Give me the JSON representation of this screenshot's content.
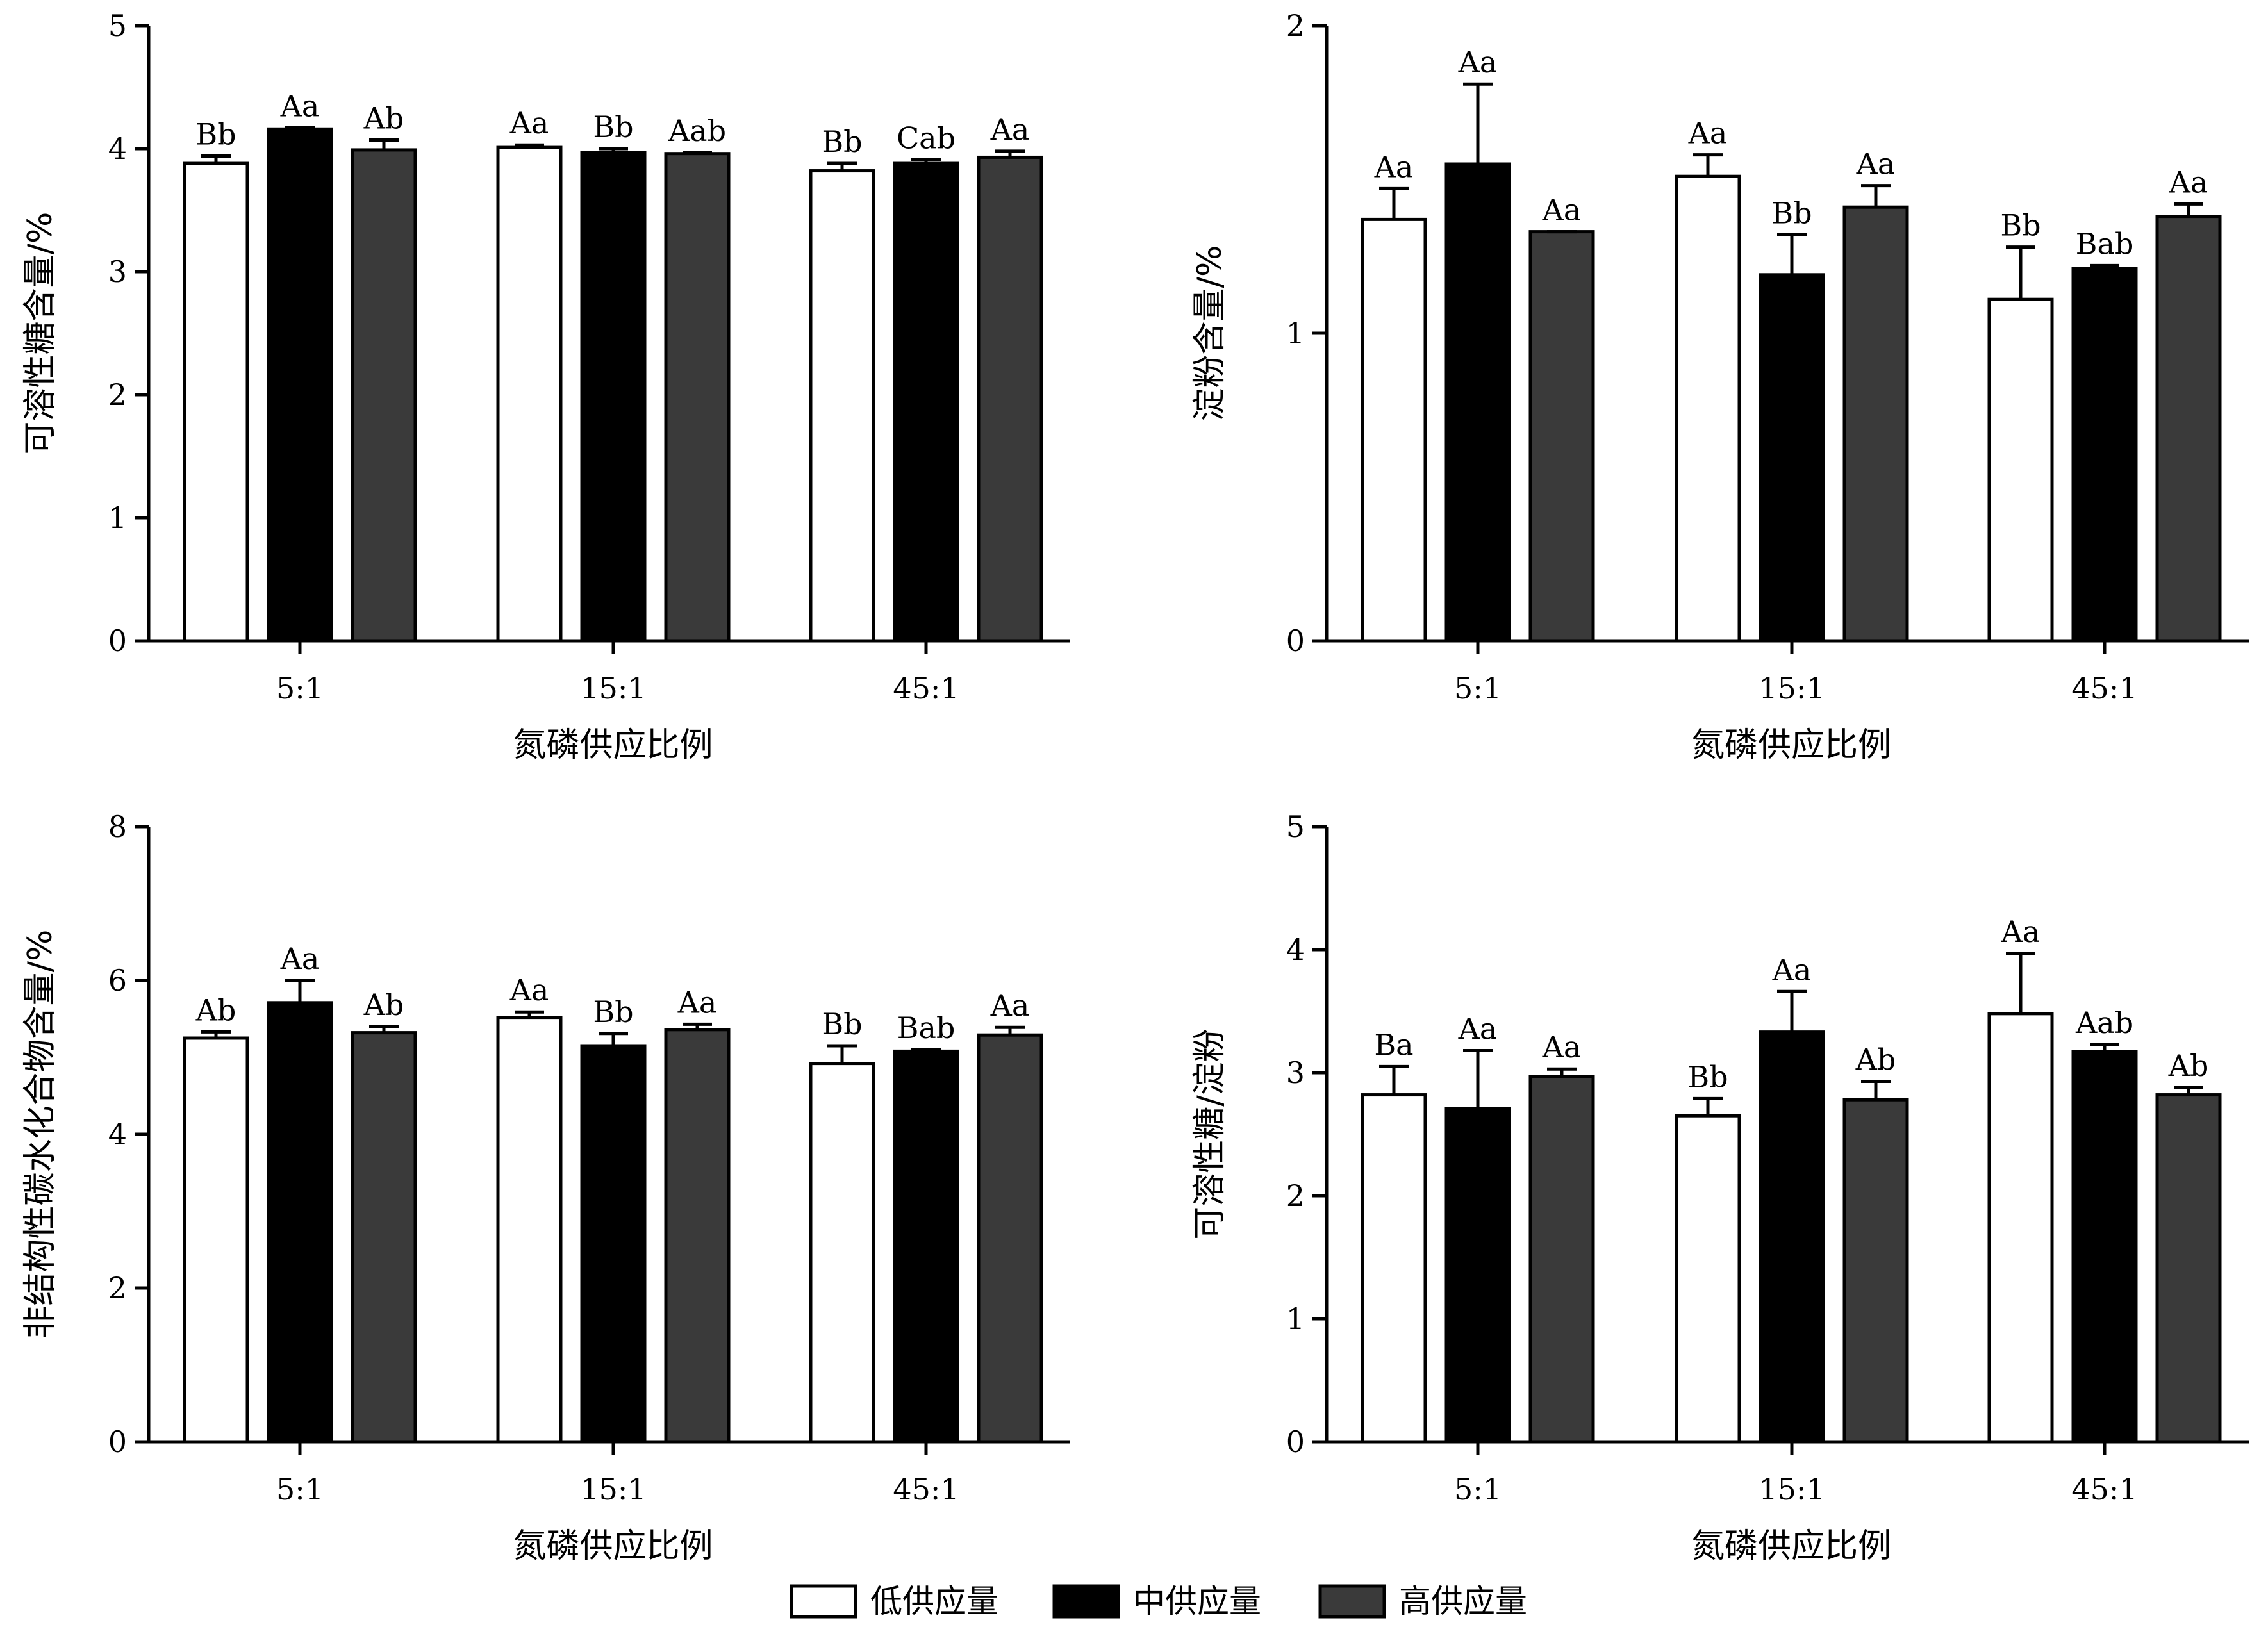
{
  "colors": {
    "low": "#ffffff",
    "mid": "#000000",
    "high": "#3a3a3a",
    "stroke": "#000000"
  },
  "legend": [
    {
      "label": "低供应量",
      "key": "low"
    },
    {
      "label": "中供应量",
      "key": "mid"
    },
    {
      "label": "高供应量",
      "key": "high"
    }
  ],
  "chart_data": [
    {
      "type": "bar",
      "panel": "top-left",
      "categories": [
        "5:1",
        "15:1",
        "45:1"
      ],
      "xlabel": "氮磷供应比例",
      "ylabel": "可溶性糖含量/%",
      "ylim": [
        0,
        5
      ],
      "yticks": [
        0,
        1,
        2,
        3,
        4,
        5
      ],
      "series": [
        {
          "key": "low",
          "values": [
            3.88,
            4.01,
            3.82
          ],
          "errors": [
            0.06,
            0.02,
            0.06
          ],
          "labels": [
            "Bb",
            "Aa",
            "Bb"
          ]
        },
        {
          "key": "mid",
          "values": [
            4.16,
            3.97,
            3.88
          ],
          "errors": [
            0.01,
            0.03,
            0.03
          ],
          "labels": [
            "Aa",
            "Bb",
            "Cab"
          ]
        },
        {
          "key": "high",
          "values": [
            3.99,
            3.96,
            3.93
          ],
          "errors": [
            0.08,
            0.01,
            0.05
          ],
          "labels": [
            "Ab",
            "Aab",
            "Aa"
          ]
        }
      ]
    },
    {
      "type": "bar",
      "panel": "top-right",
      "categories": [
        "5:1",
        "15:1",
        "45:1"
      ],
      "xlabel": "氮磷供应比例",
      "ylabel": "淀粉含量/%",
      "ylim": [
        0,
        2
      ],
      "yticks": [
        0,
        1,
        2
      ],
      "series": [
        {
          "key": "low",
          "values": [
            1.37,
            1.51,
            1.11
          ],
          "errors": [
            0.1,
            0.07,
            0.17
          ],
          "labels": [
            "Aa",
            "Aa",
            "Bb"
          ]
        },
        {
          "key": "mid",
          "values": [
            1.55,
            1.19,
            1.21
          ],
          "errors": [
            0.26,
            0.13,
            0.01
          ],
          "labels": [
            "Aa",
            "Bb",
            "Bab"
          ]
        },
        {
          "key": "high",
          "values": [
            1.33,
            1.41,
            1.38
          ],
          "errors": [
            0.0,
            0.07,
            0.04
          ],
          "labels": [
            "Aa",
            "Aa",
            "Aa"
          ]
        }
      ]
    },
    {
      "type": "bar",
      "panel": "bottom-left",
      "categories": [
        "5:1",
        "15:1",
        "45:1"
      ],
      "xlabel": "氮磷供应比例",
      "ylabel": "非结构性碳水化合物含量/%",
      "ylim": [
        0,
        8
      ],
      "yticks": [
        0,
        2,
        4,
        6,
        8
      ],
      "series": [
        {
          "key": "low",
          "values": [
            5.25,
            5.52,
            4.92
          ],
          "errors": [
            0.08,
            0.07,
            0.23
          ],
          "labels": [
            "Ab",
            "Aa",
            "Bb"
          ]
        },
        {
          "key": "mid",
          "values": [
            5.71,
            5.15,
            5.08
          ],
          "errors": [
            0.29,
            0.16,
            0.02
          ],
          "labels": [
            "Aa",
            "Bb",
            "Bab"
          ]
        },
        {
          "key": "high",
          "values": [
            5.32,
            5.36,
            5.29
          ],
          "errors": [
            0.08,
            0.07,
            0.1
          ],
          "labels": [
            "Ab",
            "Aa",
            "Aa"
          ]
        }
      ]
    },
    {
      "type": "bar",
      "panel": "bottom-right",
      "categories": [
        "5:1",
        "15:1",
        "45:1"
      ],
      "xlabel": "氮磷供应比例",
      "ylabel": "可溶性糖/淀粉",
      "ylim": [
        0,
        5
      ],
      "yticks": [
        0,
        1,
        2,
        3,
        4,
        5
      ],
      "series": [
        {
          "key": "low",
          "values": [
            2.82,
            2.65,
            3.48
          ],
          "errors": [
            0.23,
            0.14,
            0.49
          ],
          "labels": [
            "Ba",
            "Bb",
            "Aa"
          ]
        },
        {
          "key": "mid",
          "values": [
            2.71,
            3.33,
            3.17
          ],
          "errors": [
            0.47,
            0.33,
            0.06
          ],
          "labels": [
            "Aa",
            "Aa",
            "Aab"
          ]
        },
        {
          "key": "high",
          "values": [
            2.97,
            2.78,
            2.82
          ],
          "errors": [
            0.06,
            0.15,
            0.06
          ],
          "labels": [
            "Aa",
            "Ab",
            "Ab"
          ]
        }
      ]
    }
  ]
}
